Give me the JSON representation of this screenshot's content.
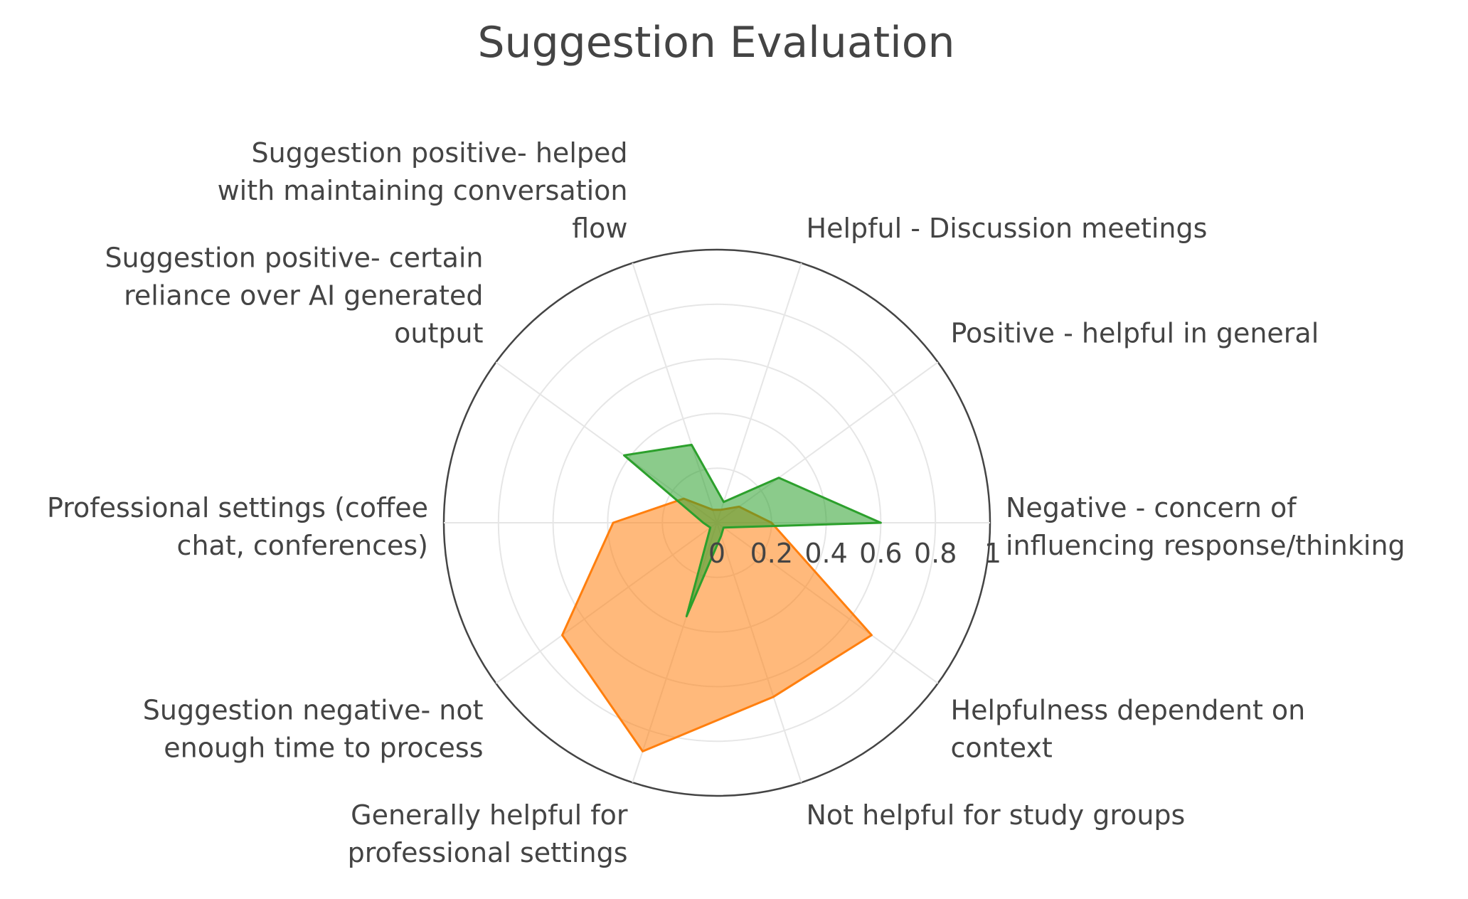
{
  "chart_data": {
    "type": "radar",
    "title": "Suggestion Evaluation",
    "categories": [
      "Negative - concern of influencing response/thinking",
      "Positive - helpful in general",
      "Helpful - Discussion meetings",
      "Suggestion positive- helped with maintaining conversation flow",
      "Suggestion positive- certain reliance over AI generated output",
      "Professional settings (coffee chat, conferences)",
      "Suggestion negative- not enough time to process",
      "Generally helpful for professional settings",
      "Not helpful for study groups",
      "Helpfulness dependent on context"
    ],
    "category_label_lines": [
      [
        "Negative - concern of",
        "influencing response/thinking"
      ],
      [
        "Positive - helpful in general"
      ],
      [
        "Helpful - Discussion meetings"
      ],
      [
        "Suggestion positive- helped",
        "with maintaining conversation",
        "flow"
      ],
      [
        "Suggestion positive- certain",
        "reliance over AI generated",
        "output"
      ],
      [
        "Professional settings (coffee",
        "chat, conferences)"
      ],
      [
        "Suggestion negative- not",
        "enough time to process"
      ],
      [
        "Generally helpful for",
        "professional settings"
      ],
      [
        "Not helpful for study groups"
      ],
      [
        "Helpfulness dependent on",
        "context"
      ]
    ],
    "series": [
      {
        "color": "#ff7f0e",
        "fill": "#ff7f0e",
        "values": [
          0.2,
          0.1,
          0.05,
          0.05,
          0.15,
          0.38,
          0.7,
          0.88,
          0.67,
          0.7
        ]
      },
      {
        "color": "#2ca02c",
        "fill": "#2ca02c",
        "values": [
          0.6,
          0.28,
          0.08,
          0.3,
          0.42,
          0.05,
          0.03,
          0.36,
          0.05,
          0.03
        ]
      }
    ],
    "radial_range": [
      0,
      1
    ],
    "radial_ticks": [
      "0",
      "0.2",
      "0.4",
      "0.6",
      "0.8",
      "1"
    ],
    "radial_tick_values": [
      0,
      0.2,
      0.4,
      0.6,
      0.8,
      1
    ],
    "grid": true,
    "legend": "none"
  }
}
